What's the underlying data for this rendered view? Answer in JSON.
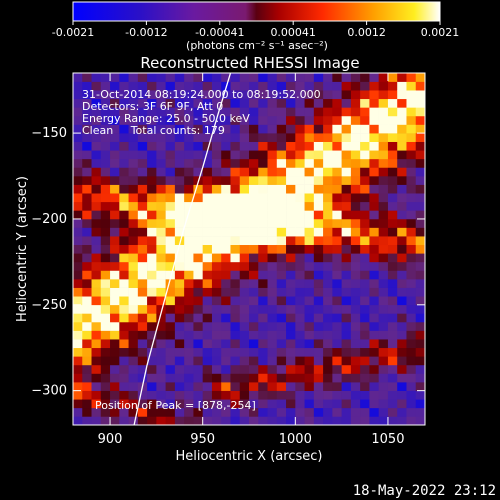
{
  "chart_data": {
    "type": "heatmap",
    "title": "Reconstructed RHESSI Image",
    "xlabel": "Heliocentric X (arcsec)",
    "ylabel": "Heliocentric Y (arcsec)",
    "xlim": [
      880,
      1070
    ],
    "ylim": [
      -320,
      -115
    ],
    "xticks": [
      900,
      950,
      1000,
      1050
    ],
    "yticks": [
      -150,
      -200,
      -250,
      -300
    ],
    "colorbar": {
      "ticks": [
        "-0.0021",
        "-0.0012",
        "-0.00041",
        "0.00041",
        "0.0012",
        "0.0021"
      ],
      "range": [
        -0.0021,
        0.0021
      ],
      "unit_label": "(photons cm⁻² s⁻¹ asec⁻²)"
    },
    "annotations": {
      "time_range": "31-Oct-2014 08:19:24.000 to 08:19:52.000",
      "detectors": "Detectors: 3F 6F 9F, Att 0",
      "energy": "Energy Range: 25.0 - 50.0 keV",
      "method": "Clean     Total counts: 179",
      "peak": "Position of Peak = [878,-254]"
    },
    "limb_curve": [
      [
        913,
        -320
      ],
      [
        920,
        -285
      ],
      [
        930,
        -245
      ],
      [
        940,
        -205
      ],
      [
        950,
        -170
      ],
      [
        958,
        -140
      ],
      [
        965,
        -115
      ]
    ],
    "bands": [
      {
        "p0": [
          870,
          -270
        ],
        "p1": [
          1070,
          -130
        ],
        "width": 38,
        "amp": 1.0
      },
      {
        "p0": [
          880,
          -185
        ],
        "p1": [
          1070,
          -215
        ],
        "width": 20,
        "amp": 0.65
      },
      {
        "p0": [
          960,
          -300
        ],
        "p1": [
          1070,
          -275
        ],
        "width": 15,
        "amp": 0.5
      },
      {
        "p0": [
          880,
          -300
        ],
        "p1": [
          940,
          -320
        ],
        "width": 12,
        "amp": 0.45
      }
    ],
    "grid_cell_arcsec": 5
  },
  "footer": {
    "timestamp": "18-May-2022 23:12"
  }
}
